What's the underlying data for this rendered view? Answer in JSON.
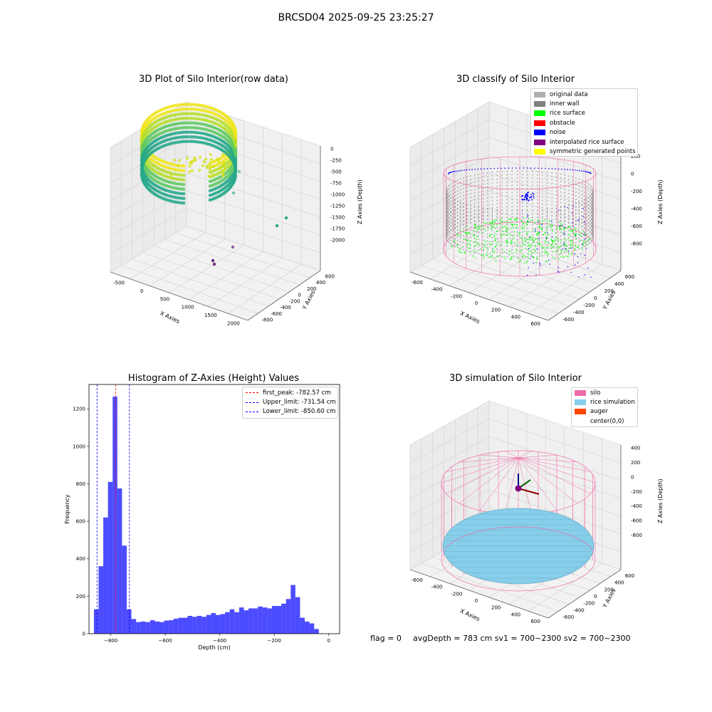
{
  "suptitle": "BRCSD04 2025-09-25 23:25:27",
  "footer": {
    "flag": "flag = 0",
    "avg": "avgDepth = 783 cm  sv1 = 700~2300  sv2 = 700~2300"
  },
  "colors": {
    "yellow": "#f0e51c",
    "teal": "#25a88a",
    "purple": "#6a2c7c",
    "gray": "#808080",
    "green": "#00ff00",
    "blue": "#0000ff",
    "pink": "#f06aa8",
    "sky": "#87ceeb",
    "orange": "#ff4500",
    "hist": "#0000ff",
    "peak": "#ff0000",
    "limit": "#0000ff"
  },
  "chart_data": [
    {
      "type": "scatter",
      "title": "3D Plot of Silo Interior(row data)",
      "xlabel": "X Axies",
      "ylabel": "Y Axies",
      "zlabel": "Z Axies (Depth)",
      "xticks": [
        "-500",
        "0",
        "500",
        "1000",
        "1500",
        "2000"
      ],
      "yticks": [
        "600",
        "400",
        "200",
        "0",
        "-200",
        "-400",
        "-600",
        "-800"
      ],
      "zticks": [
        "0",
        "-250",
        "-500",
        "-750",
        "-1000",
        "-1250",
        "-1500",
        "-1750",
        "-2000"
      ],
      "colormap": "viridis",
      "outliers": [
        {
          "x": 700,
          "y": 500,
          "z": -450
        },
        {
          "x": 1650,
          "y": 560,
          "z": -1600
        },
        {
          "x": 1600,
          "y": 350,
          "z": -1800
        },
        {
          "x": 1400,
          "y": -100,
          "z": -1900
        },
        {
          "x": 1100,
          "y": -150,
          "z": -2000
        },
        {
          "x": 1050,
          "y": -200,
          "z": -2000
        }
      ]
    },
    {
      "type": "scatter",
      "title": "3D classify of Silo Interior",
      "xlabel": "X Axies",
      "ylabel": "Y Axies",
      "zlabel": "Z Axies (Depth)",
      "xticks": [
        "-600",
        "-400",
        "-200",
        "0",
        "200",
        "400",
        "600"
      ],
      "yticks": [
        "600",
        "400",
        "200",
        "0",
        "-200",
        "-400",
        "-600"
      ],
      "zticks": [
        "200",
        "0",
        "-200",
        "-400",
        "-600",
        "-800"
      ],
      "legend": [
        {
          "label": "original data",
          "color": "#b0b0b0"
        },
        {
          "label": "inner wall",
          "color": "#808080"
        },
        {
          "label": "rice surface",
          "color": "#00ff00"
        },
        {
          "label": "obstacle",
          "color": "#ff0000"
        },
        {
          "label": "noise",
          "color": "#0000ff"
        },
        {
          "label": "interpolated rice surface",
          "color": "#800080"
        },
        {
          "label": "symmetric generated points",
          "color": "#ffff00"
        }
      ],
      "legend_loc": "upper right"
    },
    {
      "type": "bar",
      "title": "Histogram of Z-Axies (Height) Values",
      "xlabel": "Depth (cm)",
      "ylabel": "Frequency",
      "xlim": [
        -880,
        40
      ],
      "ylim": [
        0,
        1330
      ],
      "xticks": [
        -800,
        -600,
        -400,
        -200,
        0
      ],
      "xtick_labels": [
        "−800",
        "−600",
        "−400",
        "−200",
        "0"
      ],
      "yticks": [
        0,
        200,
        400,
        600,
        800,
        1000,
        1200
      ],
      "bin_start": -862,
      "bin_width": 17.2,
      "values": [
        130,
        360,
        620,
        810,
        1265,
        775,
        470,
        130,
        78,
        62,
        65,
        62,
        72,
        65,
        62,
        70,
        72,
        80,
        85,
        85,
        95,
        90,
        95,
        90,
        100,
        110,
        100,
        105,
        115,
        130,
        115,
        140,
        125,
        135,
        135,
        145,
        140,
        135,
        148,
        148,
        160,
        185,
        260,
        195,
        85,
        65,
        55,
        25
      ],
      "lines": [
        {
          "name": "first_peak: -782.57 cm",
          "x": -782.57,
          "color": "#ff0000"
        },
        {
          "name": "Upper_limit: -731.54 cm",
          "x": -731.54,
          "color": "#0000ff"
        },
        {
          "name": "Lower_limit: -850.60 cm",
          "x": -850.6,
          "color": "#0000ff"
        }
      ],
      "legend_loc": "upper right"
    },
    {
      "type": "scatter",
      "title": "3D simulation of Silo Interior",
      "xlabel": "X Axies",
      "ylabel": "Y Axies",
      "zlabel": "Z Axies (Depth)",
      "xticks": [
        "-600",
        "-400",
        "-200",
        "0",
        "200",
        "400",
        "600"
      ],
      "yticks": [
        "600",
        "400",
        "200",
        "0",
        "-200",
        "-400",
        "-600"
      ],
      "zticks": [
        "400",
        "200",
        "0",
        "-200",
        "-400",
        "-600",
        "-800"
      ],
      "legend": [
        {
          "label": "silo",
          "color": "#f06aa8"
        },
        {
          "label": "rice simulation",
          "color": "#87ceeb"
        },
        {
          "label": "auger",
          "color": "#ff4500"
        },
        {
          "label": "center(0,0)",
          "color": "#ffffff"
        }
      ],
      "legend_loc": "upper right"
    }
  ]
}
